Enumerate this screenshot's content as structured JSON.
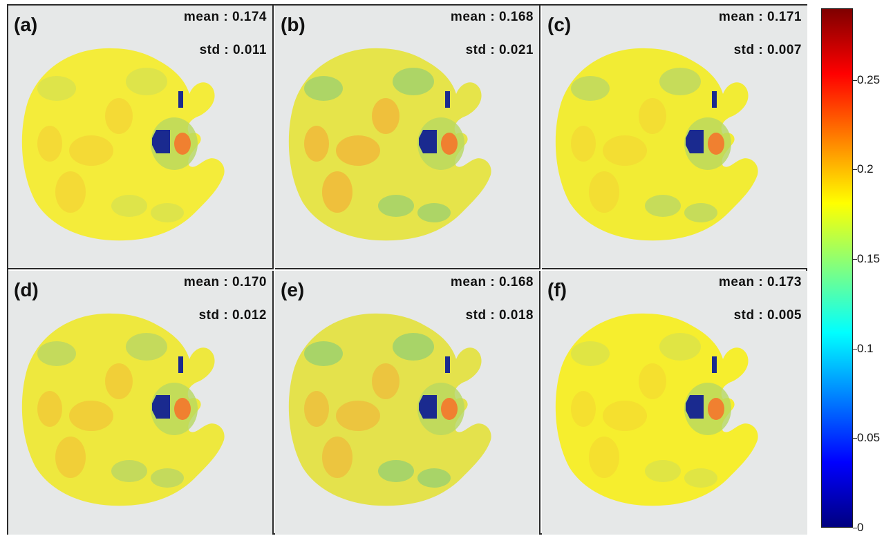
{
  "panels": [
    {
      "label": "(a)",
      "mean": "mean : 0.174",
      "std": "std : 0.011",
      "base": "#f4ec3a",
      "blobs": [
        [
          "#c9dc5a",
          0.08
        ],
        [
          "#f5c032",
          0.05
        ]
      ]
    },
    {
      "label": "(b)",
      "mean": "mean : 0.168",
      "std": "std : 0.021",
      "base": "#e6e44a",
      "blobs": [
        [
          "#a8d468",
          0.18
        ],
        [
          "#f7a030",
          0.08
        ]
      ]
    },
    {
      "label": "(c)",
      "mean": "mean : 0.171",
      "std": "std : 0.007",
      "base": "#f2ec34",
      "blobs": [
        [
          "#c6dc5a",
          0.2
        ],
        [
          "#f5c032",
          0.03
        ]
      ]
    },
    {
      "label": "(d)",
      "mean": "mean : 0.170",
      "std": "std : 0.012",
      "base": "#eee83e",
      "blobs": [
        [
          "#c4da5c",
          0.22
        ],
        [
          "#f5b032",
          0.06
        ]
      ]
    },
    {
      "label": "(e)",
      "mean": "mean : 0.168",
      "std": "std : 0.018",
      "base": "#e4e24c",
      "blobs": [
        [
          "#a8d468",
          0.2
        ],
        [
          "#f7a030",
          0.06
        ]
      ]
    },
    {
      "label": "(f)",
      "mean": "mean : 0.173",
      "std": "std : 0.005",
      "base": "#f6ee2e",
      "blobs": [
        [
          "#d6e050",
          0.12
        ],
        [
          "#f5c032",
          0.02
        ]
      ]
    }
  ],
  "colorbar": {
    "colormap": "jet",
    "min": 0,
    "max": 0.29,
    "ticks": [
      "0",
      "0.05",
      "0.1",
      "0.15",
      "0.2",
      "0.25"
    ],
    "tick_values": [
      0,
      0.05,
      0.1,
      0.15,
      0.2,
      0.25
    ]
  },
  "colors": {
    "background": "#e6e8e8",
    "frame": "#2a2a2a",
    "hole": "#1a2a8f"
  }
}
